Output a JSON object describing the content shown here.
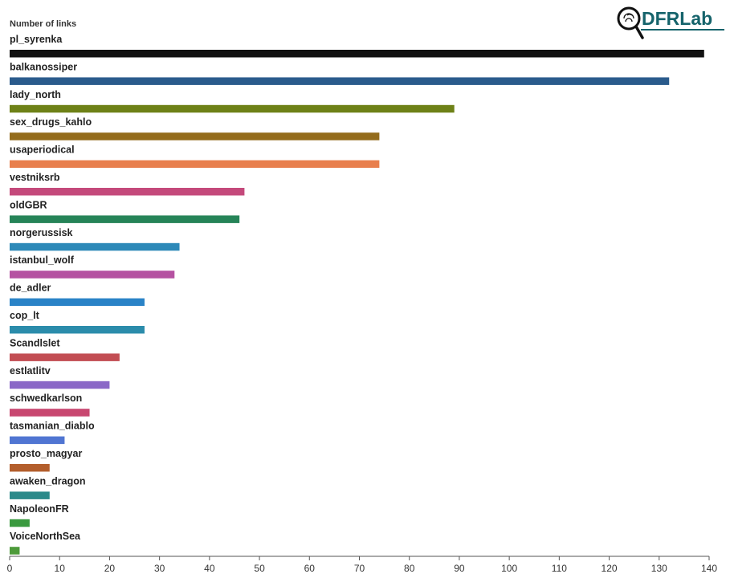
{
  "logo": {
    "text": "DFRLab"
  },
  "chart_data": {
    "type": "bar",
    "orientation": "horizontal",
    "axis_title": "Number of links",
    "xlim": [
      0,
      140
    ],
    "ticks": [
      0,
      10,
      20,
      30,
      40,
      50,
      60,
      70,
      80,
      90,
      100,
      110,
      120,
      130,
      140
    ],
    "grid": false,
    "categories": [
      "pl_syrenka",
      "balkanossiper",
      "lady_north",
      "sex_drugs_kahlo",
      "usaperiodical",
      "vestniksrb",
      "oldGBR",
      "norgerussisk",
      "istanbul_wolf",
      "de_adler",
      "cop_lt",
      "Scandlslet",
      "estlatlitv",
      "schwedkarlson",
      "tasmanian_diablo",
      "prosto_magyar",
      "awaken_dragon",
      "NapoleonFR",
      "VoiceNorthSea"
    ],
    "values": [
      139,
      132,
      89,
      74,
      74,
      47,
      46,
      34,
      33,
      27,
      27,
      22,
      20,
      16,
      11,
      8,
      8,
      4,
      2
    ],
    "colors": [
      "#111111",
      "#2a5b8c",
      "#6e8117",
      "#946c1c",
      "#e87f4d",
      "#c4497b",
      "#268458",
      "#2d89b8",
      "#b552a1",
      "#2a83c7",
      "#2b8cab",
      "#c24d53",
      "#8a67c7",
      "#c84770",
      "#5075d2",
      "#b35e2c",
      "#2b8a8a",
      "#3a9a3f",
      "#4d9a3a"
    ]
  }
}
